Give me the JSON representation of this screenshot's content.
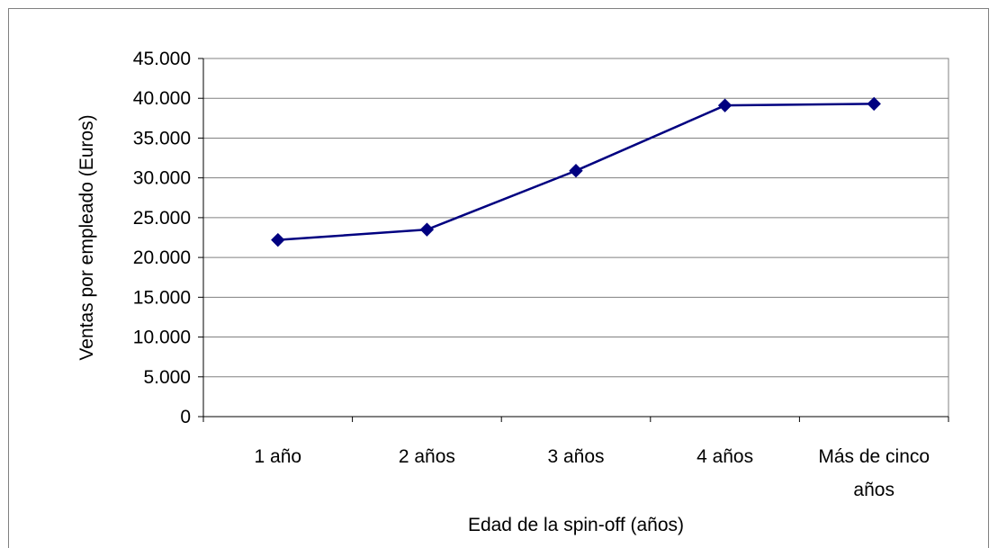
{
  "chart_data": {
    "type": "line",
    "title": "",
    "xlabel": "Edad de la spin-off (años)",
    "ylabel": "Ventas por empleado (Euros)",
    "categories": [
      [
        "1 año"
      ],
      [
        "2 años"
      ],
      [
        "3 años"
      ],
      [
        "4 años"
      ],
      [
        "Más de cinco",
        "años"
      ]
    ],
    "series": [
      {
        "values": [
          22200,
          23500,
          30900,
          39100,
          39300
        ]
      }
    ],
    "ylim": [
      0,
      45000
    ],
    "yticks": [
      0,
      5000,
      10000,
      15000,
      20000,
      25000,
      30000,
      35000,
      40000,
      45000
    ],
    "ytick_labels": [
      "0",
      "5.000",
      "10.000",
      "15.000",
      "20.000",
      "25.000",
      "30.000",
      "35.000",
      "40.000",
      "45.000"
    ],
    "grid": true,
    "legend": "none",
    "colors": {
      "line": "#000080",
      "marker": "#000080",
      "grid": "#808080",
      "plot_border": "#808080"
    }
  }
}
